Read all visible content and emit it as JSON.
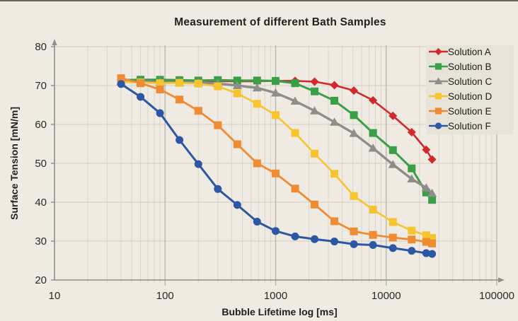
{
  "chart_data": {
    "type": "line",
    "title": "Measurement of different Bath Samples",
    "xlabel": "Bubble Lifetime log [ms]",
    "ylabel": "Surface Tension [mN/m]",
    "x_scale": "log",
    "xlim": [
      10,
      100000
    ],
    "ylim": [
      20,
      80
    ],
    "x_ticks": [
      10,
      100,
      1000,
      10000,
      100000
    ],
    "y_ticks": [
      20,
      30,
      40,
      50,
      60,
      70,
      80
    ],
    "grid": {
      "vertical": "log-minor-and-major",
      "horizontal": "major-every-10"
    },
    "legend_position": "top-right",
    "x": [
      40,
      60,
      90,
      135,
      200,
      300,
      450,
      680,
      1000,
      1500,
      2250,
      3400,
      5100,
      7600,
      11500,
      17000,
      23000,
      26000
    ],
    "series": [
      {
        "name": "Solution A",
        "color": "#d2292d",
        "marker": "diamond",
        "values": [
          71.3,
          71.2,
          71.1,
          71.1,
          71.1,
          71.1,
          71.1,
          71.1,
          71.2,
          71.2,
          71.0,
          70.1,
          68.7,
          66.2,
          62.2,
          58.0,
          53.5,
          51.0
        ]
      },
      {
        "name": "Solution B",
        "color": "#3b9f47",
        "marker": "square",
        "values": [
          71.4,
          71.5,
          71.5,
          71.4,
          71.3,
          71.4,
          71.3,
          71.3,
          71.2,
          70.6,
          68.5,
          66.1,
          62.4,
          57.8,
          53.4,
          48.7,
          42.5,
          40.6
        ]
      },
      {
        "name": "Solution C",
        "color": "#8e8d8a",
        "marker": "triangle",
        "values": [
          71.0,
          71.0,
          70.9,
          70.8,
          70.8,
          70.5,
          70.0,
          69.4,
          68.1,
          66.0,
          63.5,
          60.6,
          57.7,
          53.9,
          49.7,
          46.0,
          43.7,
          42.3
        ]
      },
      {
        "name": "Solution D",
        "color": "#f6c42f",
        "marker": "square",
        "values": [
          71.0,
          70.8,
          70.6,
          70.7,
          70.5,
          69.8,
          68.0,
          65.3,
          62.4,
          57.8,
          52.5,
          47.3,
          41.6,
          38.1,
          34.9,
          32.7,
          31.5,
          30.8
        ]
      },
      {
        "name": "Solution E",
        "color": "#ee8b33",
        "marker": "square",
        "values": [
          71.9,
          70.6,
          69.0,
          66.4,
          63.5,
          59.8,
          54.9,
          50.0,
          47.4,
          43.5,
          39.4,
          35.1,
          32.5,
          31.6,
          30.9,
          30.4,
          29.8,
          29.4
        ]
      },
      {
        "name": "Solution F",
        "color": "#2b57a5",
        "marker": "circle",
        "values": [
          70.4,
          67.1,
          62.9,
          56.0,
          49.8,
          43.4,
          39.3,
          35.0,
          32.6,
          31.2,
          30.5,
          29.9,
          29.2,
          29.0,
          28.2,
          27.5,
          26.9,
          26.7
        ]
      }
    ]
  },
  "colors": {
    "background": "#f0ebe2",
    "legend_background": "#e7e3d9",
    "grid_minor": "#d9d6cd",
    "grid_major": "#b5b2a9",
    "grid_horizontal": "#d2cfc6",
    "axis": "#8f8d89",
    "top_edge": "#6b675f"
  }
}
